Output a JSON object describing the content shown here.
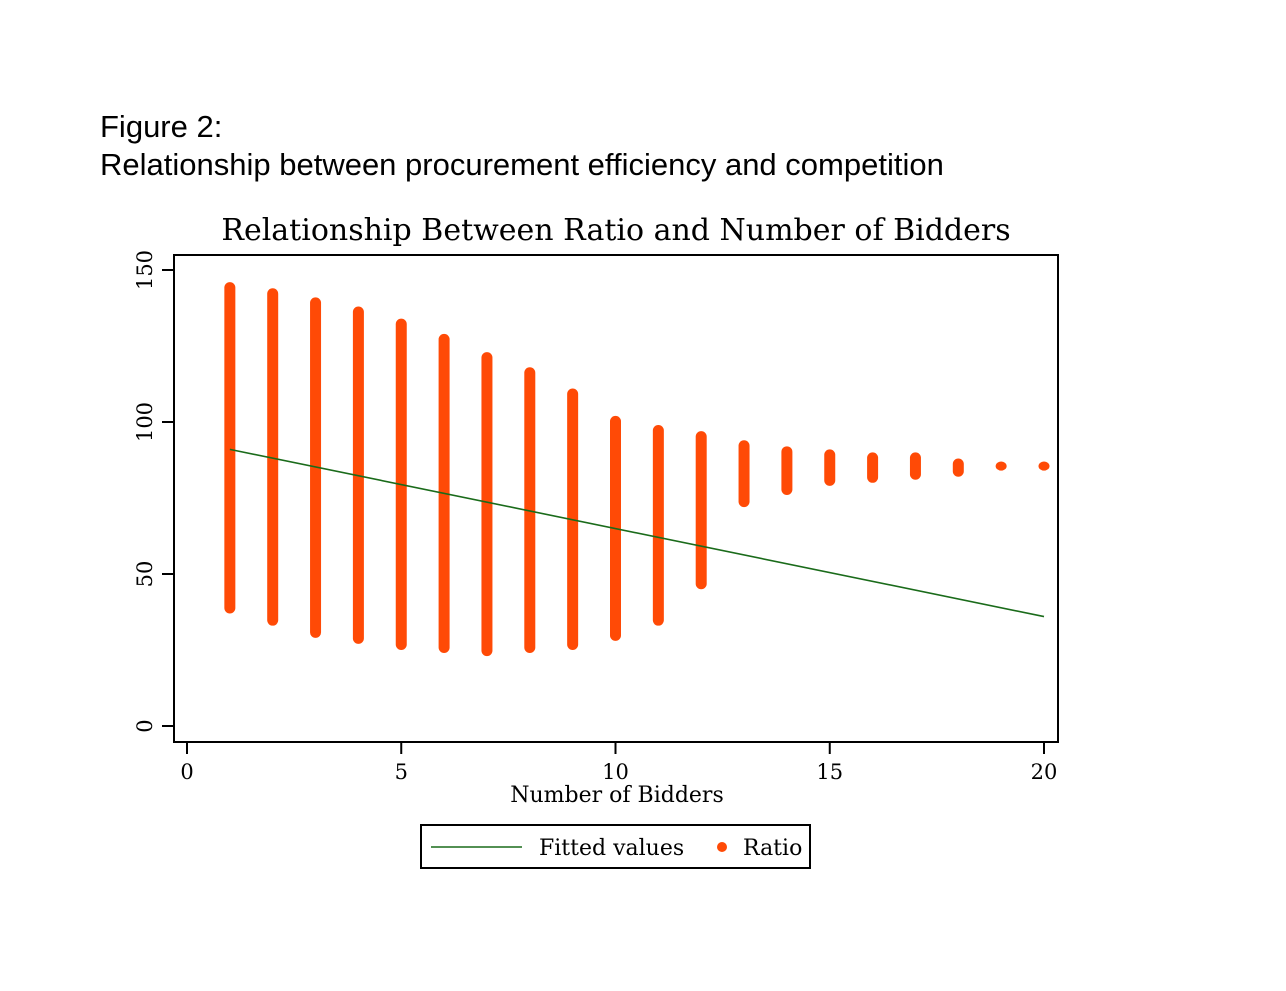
{
  "caption": {
    "line1": "Figure 2:",
    "line2": "Relationship between procurement efficiency and competition"
  },
  "colors": {
    "ratio": "#ff4a06",
    "fitted": "#1a6b1a",
    "axis": "#000000"
  },
  "chart_data": {
    "type": "scatter",
    "title": "Relationship Between Ratio and Number of Bidders",
    "xlabel": "Number of Bidders",
    "ylabel": "",
    "xlim": [
      0,
      20
    ],
    "ylim": [
      0,
      150
    ],
    "xticks": [
      0,
      5,
      10,
      15,
      20
    ],
    "yticks": [
      0,
      50,
      100,
      150
    ],
    "grid": false,
    "legend_position": "bottom",
    "series": [
      {
        "name": "Fitted values",
        "kind": "line",
        "x": [
          1,
          20
        ],
        "y": [
          91,
          36
        ]
      },
      {
        "name": "Ratio",
        "kind": "range-points",
        "x": [
          1,
          2,
          3,
          4,
          5,
          6,
          7,
          8,
          9,
          10,
          11,
          12,
          13,
          14,
          15,
          16,
          17,
          18,
          19,
          20
        ],
        "y_min": [
          37,
          33,
          29,
          27,
          25,
          24,
          23,
          24,
          25,
          28,
          33,
          45,
          72,
          76,
          79,
          80,
          81,
          82,
          84,
          84
        ],
        "y_max": [
          146,
          144,
          141,
          138,
          134,
          129,
          123,
          118,
          111,
          102,
          99,
          97,
          94,
          92,
          91,
          90,
          90,
          88,
          87,
          87
        ]
      }
    ]
  }
}
